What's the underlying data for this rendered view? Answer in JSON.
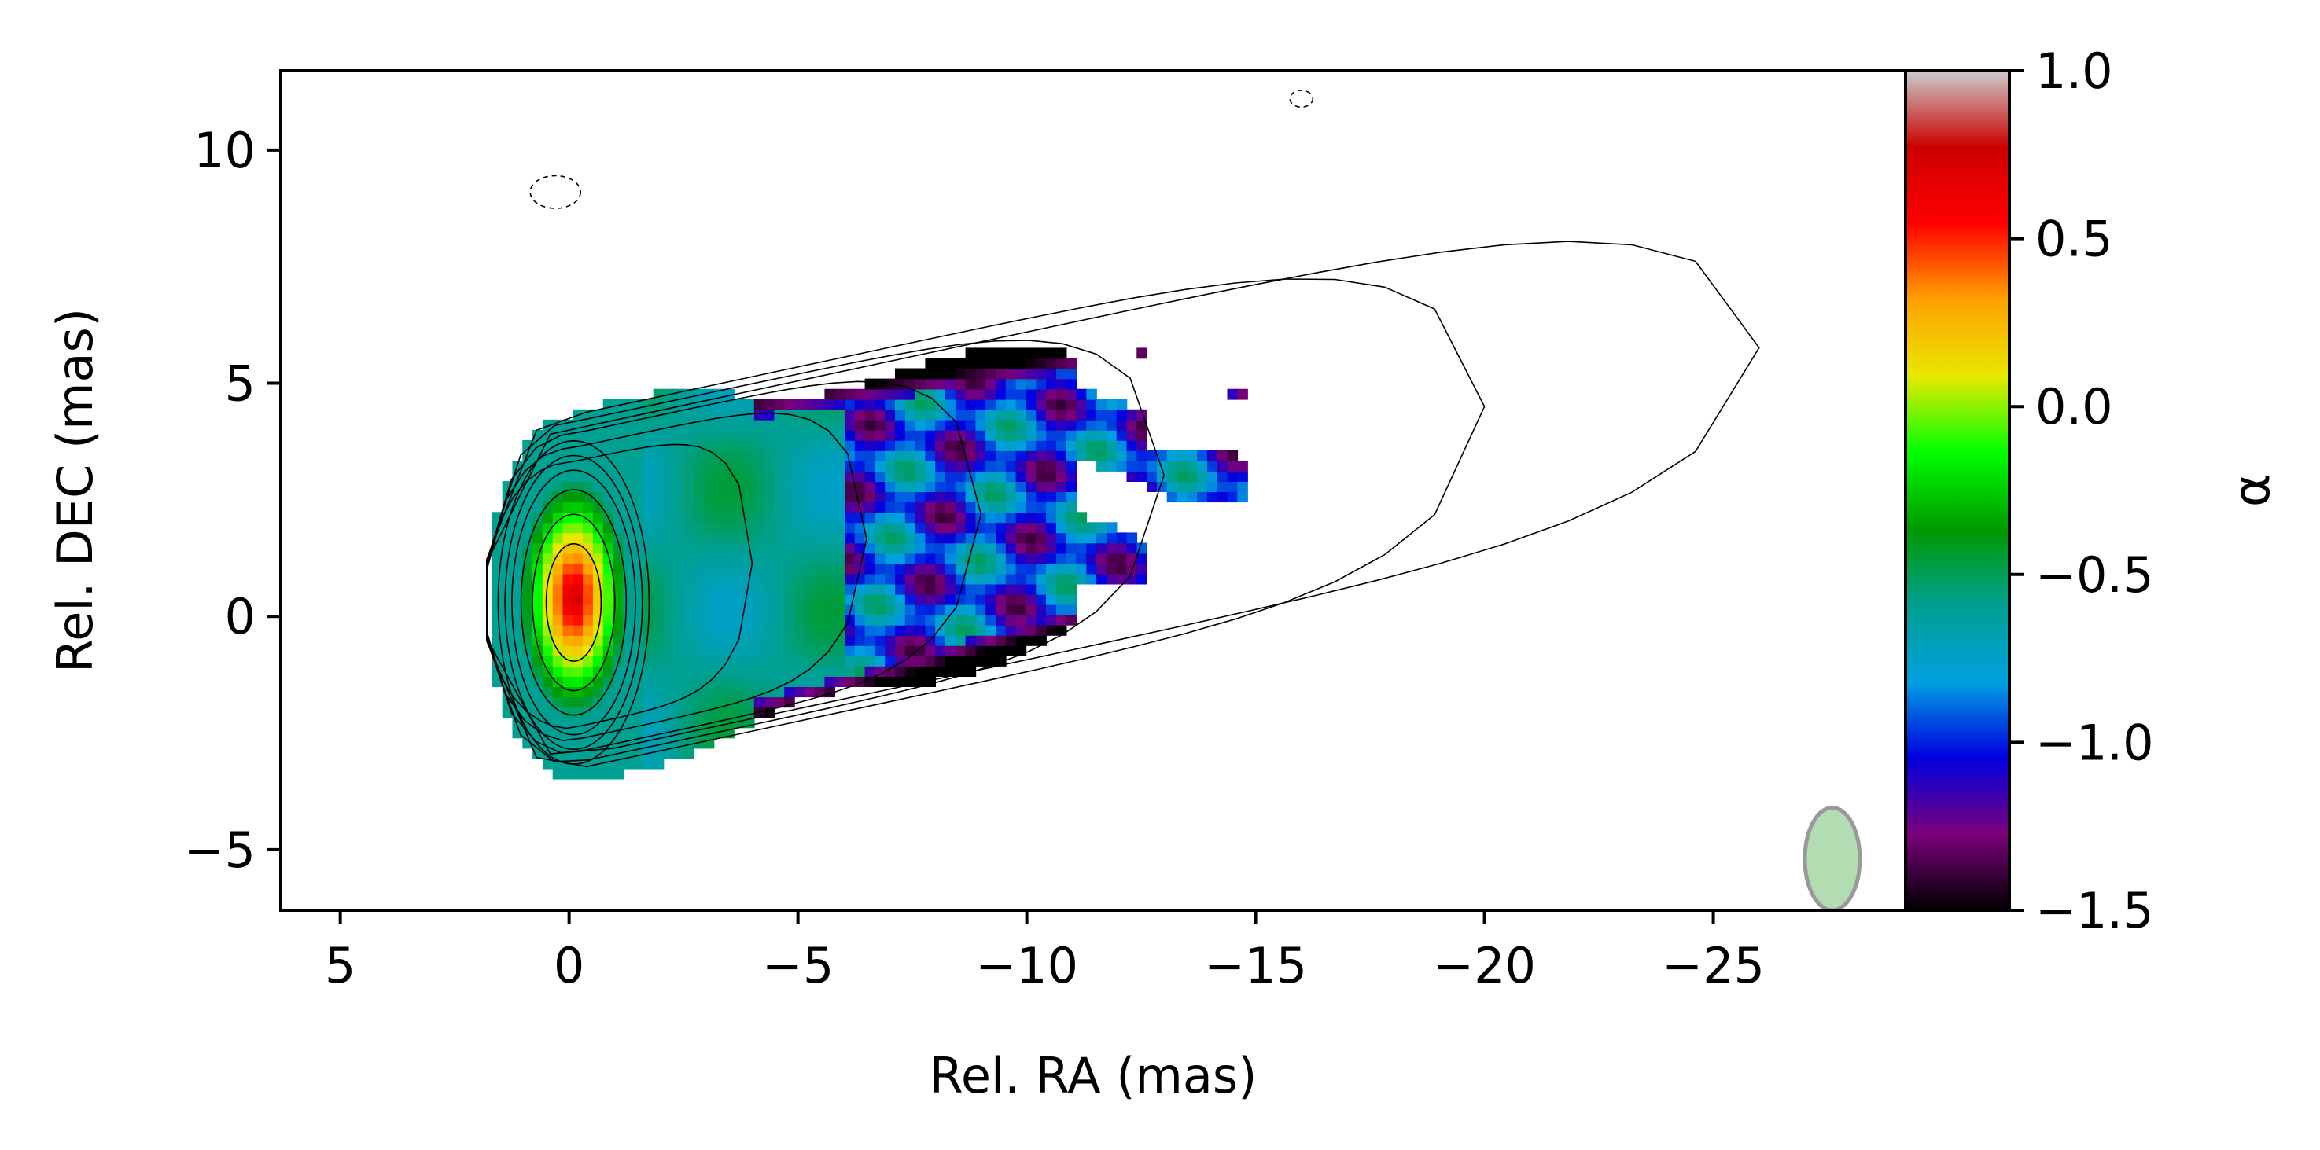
{
  "chart_data": {
    "type": "heatmap",
    "title": "",
    "xlabel": "Rel. RA (mas)",
    "ylabel": "Rel. DEC (mas)",
    "xlim": [
      6.3,
      -29.2
    ],
    "ylim": [
      -6.3,
      11.7
    ],
    "xticks": [
      5,
      0,
      -5,
      -10,
      -15,
      -20,
      -25
    ],
    "xtick_labels": [
      "5",
      "0",
      "−5",
      "−10",
      "−15",
      "−20",
      "−25"
    ],
    "yticks": [
      -5,
      0,
      5,
      10
    ],
    "ytick_labels": [
      "−5",
      "0",
      "5",
      "10"
    ],
    "colorbar": {
      "label": "α",
      "range": [
        -1.5,
        1.0
      ],
      "ticks": [
        1.0,
        0.5,
        0.0,
        -0.5,
        -1.0,
        -1.5
      ],
      "tick_labels": [
        "1.0",
        "0.5",
        "0.0",
        "−0.5",
        "−1.0",
        "−1.5"
      ],
      "colormap": [
        "#000000",
        "#7b007b",
        "#0000e0",
        "#00a0e0",
        "#00a090",
        "#009a00",
        "#00ff00",
        "#e8e800",
        "#ffa000",
        "#ff0000",
        "#cc0000",
        "#cccccc"
      ]
    },
    "core_position": [
      0.0,
      0.3
    ],
    "spectral_index_map": {
      "core_alpha": 0.8,
      "jet_alpha_typical": -0.6,
      "jet_edge_alpha": -1.5,
      "extent_ra": [
        1.9,
        -14.8
      ],
      "extent_dec": [
        -3.7,
        5.6
      ]
    },
    "contours": {
      "color": "#000000",
      "style": "solid",
      "negative_style": "dashed"
    },
    "beam": {
      "ra": -27.6,
      "dec": -5.2,
      "major_mas": 2.2,
      "minor_mas": 1.2,
      "pa_deg": 0,
      "color": "#9fd39f"
    }
  }
}
